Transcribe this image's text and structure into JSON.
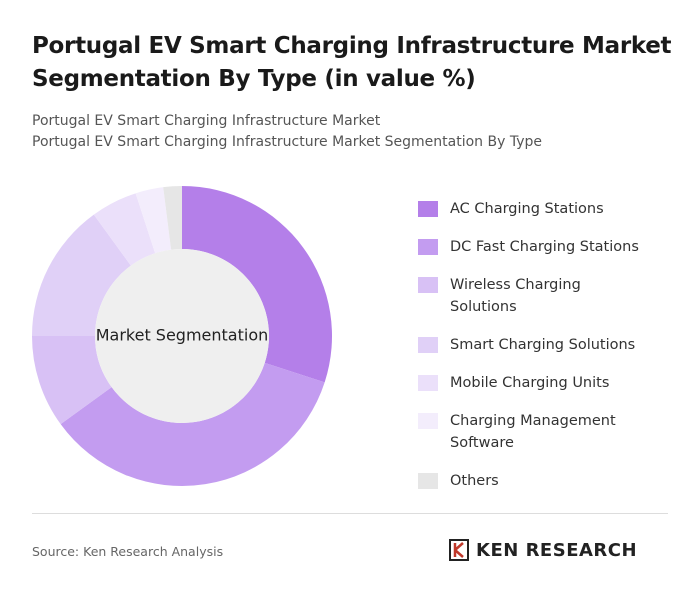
{
  "chart_data": {
    "type": "donut",
    "title": "Portugal EV Smart Charging Infrastructure Market Segmentation By Type (in value %)",
    "subtitle": [
      "Portugal EV Smart Charging Infrastructure Market",
      "Portugal EV Smart Charging Infrastructure Market Segmentation By Type"
    ],
    "center_label": "Market Segmentation",
    "categories": [
      "AC Charging Stations",
      "DC Fast Charging Stations",
      "Wireless Charging Solutions",
      "Smart Charging Solutions",
      "Mobile Charging Units",
      "Charging Management Software",
      "Others"
    ],
    "values": [
      30,
      35,
      10,
      15,
      5,
      3,
      2
    ],
    "colors": [
      "#b47fe9",
      "#c39cf0",
      "#d8c1f5",
      "#e0d0f7",
      "#ebe0fa",
      "#f3edfc",
      "#e6e6e6"
    ],
    "source": "Source: Ken Research Analysis",
    "logo": "KEN RESEARCH"
  }
}
